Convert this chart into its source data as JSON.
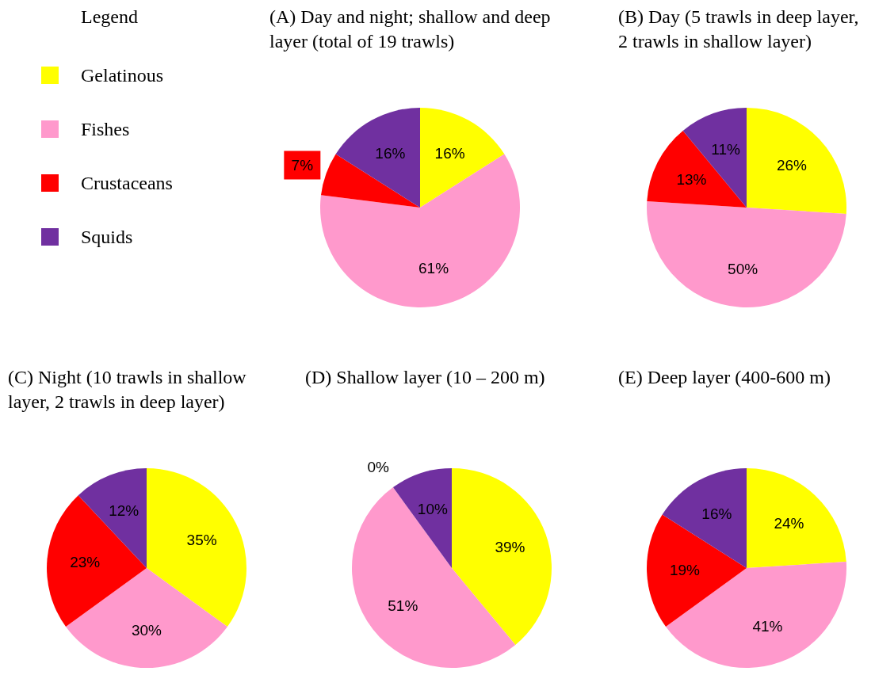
{
  "chart_data": [
    {
      "type": "pie",
      "title": "(A) Day and night; shallow and deep layer (total of 19 trawls)",
      "legend_title": "Legend",
      "legend": "left",
      "categories": [
        "Gelatinous",
        "Fishes",
        "Crustaceans",
        "Squids"
      ],
      "values": [
        16,
        61,
        7,
        16
      ],
      "value_labels": [
        "16%",
        "61%",
        "7%",
        "16%"
      ],
      "colors": [
        "#ffff00",
        "#ff99cc",
        "#ff0000",
        "#7030a0"
      ]
    },
    {
      "type": "pie",
      "title": "(B) Day (5 trawls in deep layer, 2 trawls in shallow layer)",
      "categories": [
        null,
        null,
        null,
        null
      ],
      "values": [
        26,
        50,
        13,
        11
      ],
      "value_labels": [
        "26%",
        "50%",
        "13%",
        "11%"
      ],
      "colors": [
        "#ffff00",
        "#ff99cc",
        "#ff0000",
        "#7030a0"
      ]
    },
    {
      "type": "pie",
      "title": "(C) Night (10 trawls in shallow layer, 2 trawls in deep layer)",
      "categories": [
        null,
        null,
        null,
        null
      ],
      "values": [
        35,
        30,
        23,
        12
      ],
      "value_labels": [
        "35%",
        "30%",
        "23%",
        "12%"
      ],
      "colors": [
        "#ffff00",
        "#ff99cc",
        "#ff0000",
        "#7030a0"
      ]
    },
    {
      "type": "pie",
      "title": "(D) Shallow layer (10 – 200 m)",
      "categories": [
        null,
        null,
        null,
        null
      ],
      "values": [
        39,
        51,
        0,
        10
      ],
      "value_labels": [
        "39%",
        "51%",
        "0%",
        "10%"
      ],
      "colors": [
        "#ffff00",
        "#ff99cc",
        "#ff0000",
        "#7030a0"
      ]
    },
    {
      "type": "pie",
      "title": "(E) Deep layer (400-600 m)",
      "categories": [
        null,
        null,
        null,
        null
      ],
      "values": [
        24,
        41,
        19,
        16
      ],
      "value_labels": [
        "24%",
        "41%",
        "19%",
        "16%"
      ],
      "colors": [
        "#ffff00",
        "#ff99cc",
        "#ff0000",
        "#7030a0"
      ]
    }
  ]
}
